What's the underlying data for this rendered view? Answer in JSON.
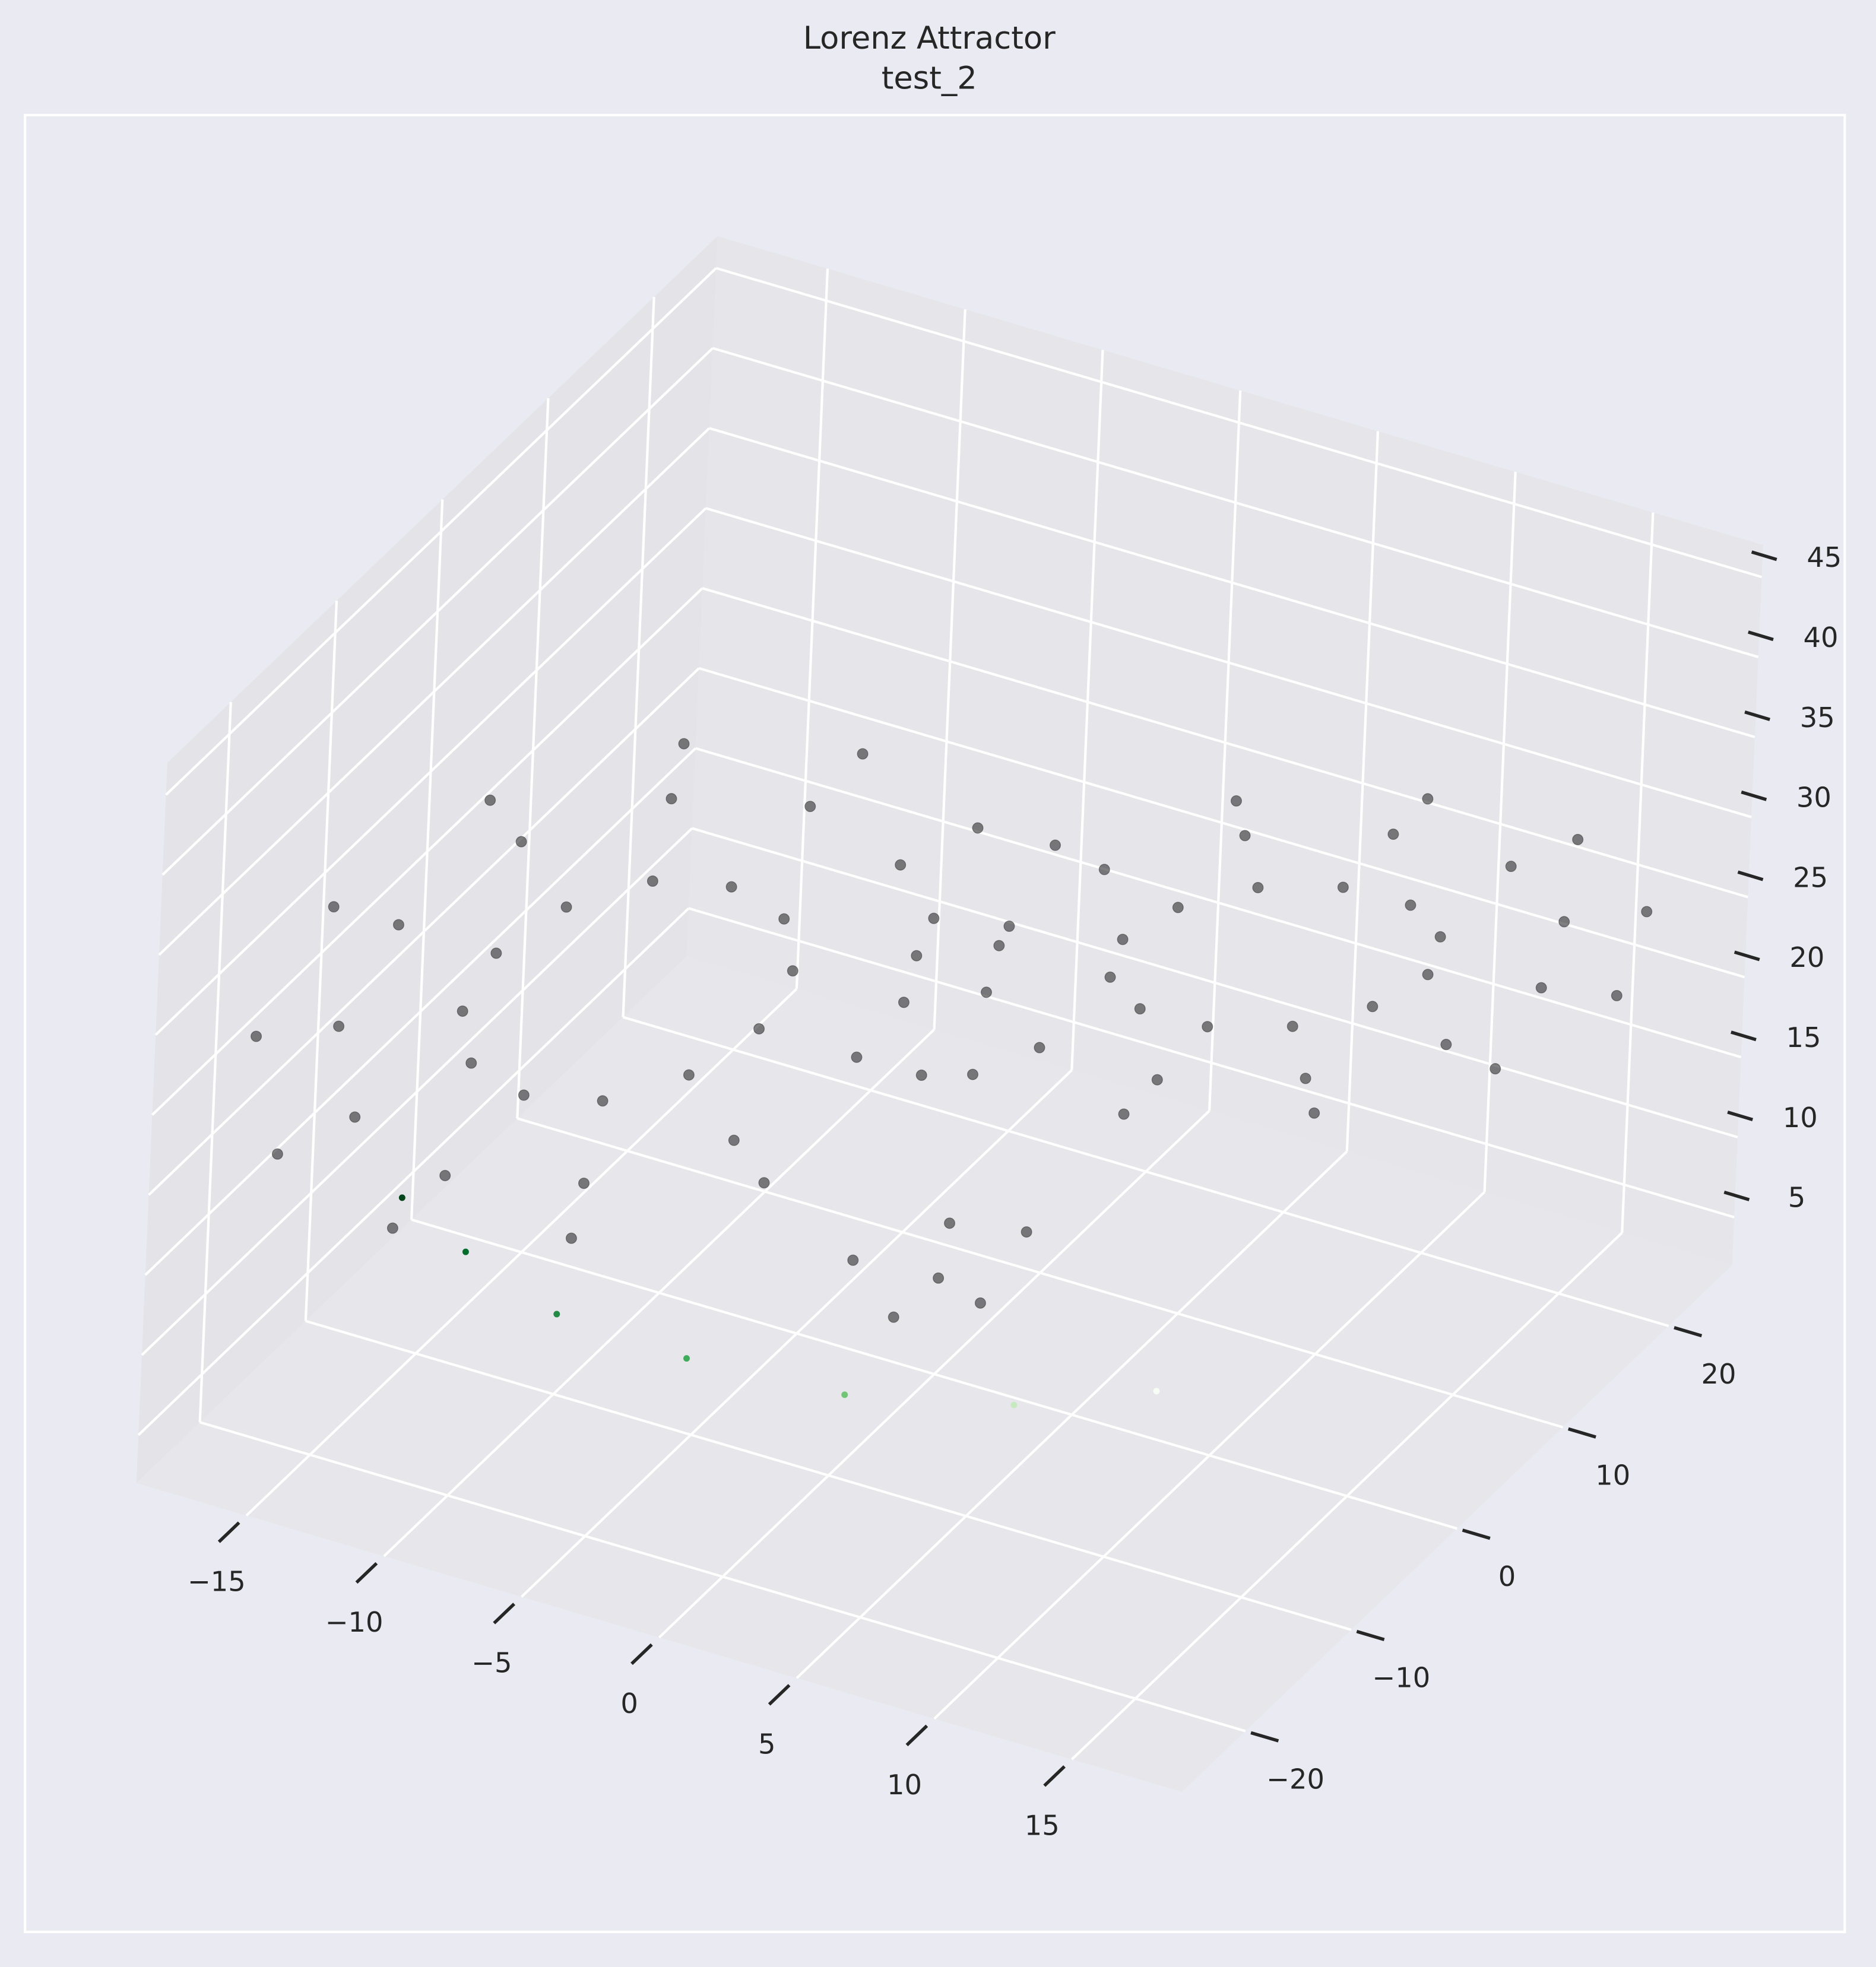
{
  "chart_data": {
    "type": "scatter3d",
    "title": "Lorenz Attractor",
    "subtitle": "test_2",
    "xlim": [
      -19,
      19
    ],
    "ylim": [
      -26,
      26
    ],
    "zlim": [
      2,
      47
    ],
    "xticks": [
      {
        "value": -15,
        "label": "−15"
      },
      {
        "value": -10,
        "label": "−10"
      },
      {
        "value": -5,
        "label": "−5"
      },
      0,
      5,
      10,
      15
    ],
    "yticks": [
      {
        "value": -20,
        "label": "−20"
      },
      {
        "value": -10,
        "label": "−10"
      },
      0,
      10,
      20
    ],
    "zticks": [
      5,
      10,
      15,
      20,
      25,
      30,
      35,
      40,
      45
    ],
    "grid": true,
    "series": [
      {
        "color": "#3a3a3a",
        "x": [
          -4.5,
          -5,
          -6.5,
          -8.5,
          -10.5,
          -12,
          -12.5,
          -12,
          -10.5,
          -8.5,
          -6.5,
          -5,
          -1.5,
          -2.4,
          -5,
          -8.5,
          -12,
          -14.6,
          -15.5,
          -14.6,
          -12,
          -8.5,
          -5,
          -2.4,
          0.5,
          -0.7,
          -4,
          -8.5,
          -13,
          -16.3,
          -17.5,
          -16.3,
          -13,
          -8.5,
          -4,
          -0.7,
          4.5,
          5,
          6.5,
          8.5,
          10.5,
          12,
          12.5,
          12,
          10.5,
          8.5,
          6.5,
          5,
          1.5,
          2.4,
          5,
          8.5,
          12,
          14.6,
          15.5,
          14.6,
          12,
          8.5,
          5,
          2.4,
          -0.5,
          0.7,
          4,
          8.5,
          13,
          16.3,
          17.5,
          16.3,
          13,
          8.5,
          4,
          0.7,
          0,
          1,
          -1,
          2,
          -2,
          0.5
        ],
        "y": [
          -3.3,
          -3,
          -4.2,
          -6.5,
          -9.4,
          -12,
          -13.7,
          -14,
          -12.8,
          -10.5,
          -7.6,
          -5,
          0.6,
          1.1,
          -0.9,
          -5,
          -10,
          -14.6,
          -17.6,
          -18.1,
          -16.1,
          -12,
          -7,
          -2.4,
          3.2,
          3.9,
          1.3,
          -4,
          -10.5,
          -16.4,
          -20.2,
          -20.9,
          -18.3,
          -13,
          -6.6,
          -0.6,
          3.3,
          3,
          4.2,
          6.5,
          9.4,
          12,
          13.7,
          14,
          12.8,
          10.5,
          7.6,
          5,
          -0.6,
          -1.1,
          0.9,
          5,
          10,
          14.6,
          17.6,
          18.1,
          16.1,
          12,
          7,
          2.4,
          -3.2,
          -3.9,
          -1.3,
          4,
          10.5,
          16.4,
          20.2,
          20.9,
          18.3,
          13,
          6.6,
          0.6,
          0,
          1.5,
          -1.5,
          3,
          -3,
          -0.5
        ],
        "z": [
          27,
          29.8,
          31.8,
          32.6,
          31.8,
          29.8,
          27,
          24.2,
          22.2,
          21.4,
          22.2,
          24.2,
          27,
          31.9,
          35.5,
          36.8,
          35.5,
          31.9,
          27,
          22.1,
          18.5,
          17.2,
          18.5,
          22.1,
          27,
          33.3,
          37.9,
          39.6,
          37.9,
          33.3,
          27,
          20.7,
          16.1,
          14.4,
          16.1,
          20.7,
          27,
          29.8,
          31.8,
          32.6,
          31.8,
          29.8,
          27,
          24.2,
          22.2,
          21.4,
          22.2,
          24.2,
          27,
          31.9,
          35.5,
          36.8,
          35.5,
          31.9,
          27,
          22.1,
          18.5,
          17.2,
          18.5,
          22.1,
          27,
          33.3,
          37.9,
          39.6,
          37.9,
          33.3,
          27,
          20.7,
          16.1,
          14.4,
          16.1,
          20.7,
          8,
          6,
          6,
          10,
          10,
          12
        ]
      },
      {
        "colors": [
          "#00441b",
          "#006d2c",
          "#238b45",
          "#41ab5d",
          "#74c476",
          "#c7e9c0",
          "#f7fcf5"
        ],
        "x": [
          -15,
          -13,
          -10,
          -6,
          -1,
          4,
          8
        ],
        "y": [
          -12,
          -11,
          -10,
          -8,
          -6,
          -3,
          0
        ],
        "z": [
          13,
          10,
          7,
          5,
          4,
          4,
          5
        ]
      }
    ]
  }
}
